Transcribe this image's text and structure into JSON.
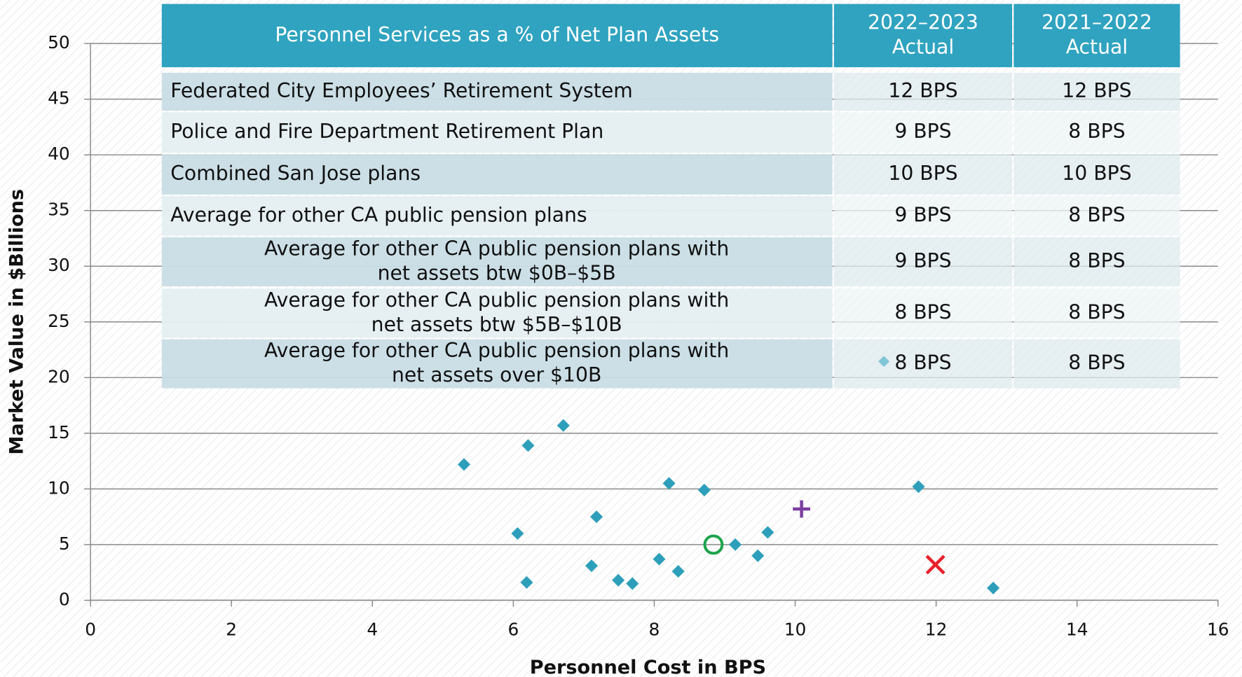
{
  "chart_data": {
    "type": "scatter",
    "x_label": "Personnel Cost in BPS",
    "y_label": "Market Value in $Billions",
    "xlim": [
      0,
      16
    ],
    "ylim": [
      0,
      50
    ],
    "xticks": [
      0,
      2,
      4,
      6,
      8,
      10,
      12,
      14,
      16
    ],
    "yticks": [
      0,
      5,
      10,
      15,
      20,
      25,
      30,
      35,
      40,
      45,
      50
    ],
    "grid": true,
    "series": [
      {
        "color": "#2e9fba",
        "marker": "diamond",
        "x": [
          5.3,
          6.21,
          6.71,
          8.21,
          8.71,
          11.75,
          7.18,
          6.06,
          9.61,
          9.15,
          9.47,
          8.07,
          7.11,
          8.34,
          7.49,
          7.69,
          6.19,
          12.81
        ],
        "values": [
          12.2,
          13.9,
          15.7,
          10.5,
          9.9,
          10.2,
          7.5,
          6.0,
          6.1,
          5.0,
          4.0,
          3.7,
          3.1,
          2.6,
          1.8,
          1.5,
          1.6,
          1.1
        ]
      },
      {
        "color": "#1aa34a",
        "marker": "circle",
        "x": [
          8.84
        ],
        "values": [
          5.0
        ]
      },
      {
        "color": "#7b3fa0",
        "marker": "plus",
        "x": [
          10.09
        ],
        "values": [
          8.2
        ]
      },
      {
        "color": "#e8202a",
        "marker": "cross",
        "x": [
          11.99
        ],
        "values": [
          3.2
        ]
      }
    ]
  },
  "table": {
    "header": [
      [
        "Personnel Services as a % of Net Plan Assets"
      ],
      [
        "2022–2023",
        "Actual"
      ],
      [
        "2021–2022",
        "Actual"
      ]
    ],
    "rows": [
      {
        "label": [
          "Federated City Employees’ Retirement System"
        ],
        "values": [
          "12 BPS",
          "12 BPS"
        ]
      },
      {
        "label": [
          "Police and Fire Department Retirement Plan"
        ],
        "values": [
          "9 BPS",
          "8 BPS"
        ]
      },
      {
        "label": [
          "Combined San Jose plans"
        ],
        "values": [
          "10 BPS",
          "10 BPS"
        ]
      },
      {
        "label": [
          "Average for other CA public pension plans"
        ],
        "values": [
          "9 BPS",
          "8 BPS"
        ]
      },
      {
        "label": [
          "Average for other CA public pension plans with",
          "net assets btw $0B–$5B"
        ],
        "values": [
          "9 BPS",
          "8 BPS"
        ]
      },
      {
        "label": [
          "Average for other CA public pension plans with",
          "net assets btw $5B–$10B"
        ],
        "values": [
          "8 BPS",
          "8 BPS"
        ]
      },
      {
        "label": [
          "Average for other CA public pension plans with",
          "net assets over $10B"
        ],
        "values": [
          "8 BPS",
          "8 BPS"
        ]
      }
    ]
  }
}
